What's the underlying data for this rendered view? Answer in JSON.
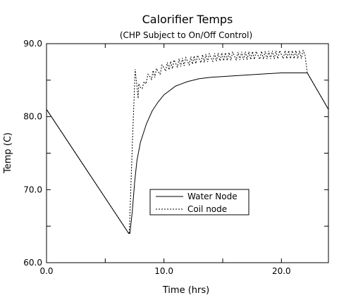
{
  "chart_data": {
    "type": "line",
    "title": "Calorifier Temps",
    "subtitle": "(CHP Subject to On/Off Control)",
    "xlabel": "Time (hrs)",
    "ylabel": "Temp (C)",
    "xlim": [
      0,
      24
    ],
    "ylim": [
      60,
      90
    ],
    "x_ticks": [
      0,
      10,
      20
    ],
    "x_tick_labels": [
      "0.0",
      "10.0",
      "20.0"
    ],
    "y_ticks": [
      60,
      70,
      80,
      90
    ],
    "y_tick_labels": [
      "60.0",
      "70.0",
      "80.0",
      "90.0"
    ],
    "grid": false,
    "legend_position": "center",
    "series": [
      {
        "name": "Water Node",
        "style": "solid",
        "x": [
          0,
          7.0,
          7.1,
          7.3,
          7.5,
          7.7,
          8.0,
          8.5,
          9.0,
          9.5,
          10.0,
          11.0,
          12.0,
          13.0,
          14.0,
          16.0,
          18.0,
          20.0,
          22.0,
          22.2,
          24.0
        ],
        "y": [
          81.0,
          64.0,
          64.0,
          67.0,
          71.0,
          74.0,
          76.5,
          79.0,
          80.8,
          82.0,
          83.0,
          84.2,
          84.8,
          85.2,
          85.4,
          85.6,
          85.8,
          86.0,
          86.0,
          86.0,
          81.0
        ]
      },
      {
        "name": "Coil node",
        "style": "dashed",
        "x": [
          0,
          7.0,
          7.05,
          7.3,
          7.55,
          7.8,
          7.85,
          8.0,
          8.3,
          8.8,
          9.5,
          10.0,
          11.0,
          12.0,
          13.0,
          14.0,
          16.0,
          18.0,
          20.0,
          22.0,
          22.2,
          24.0
        ],
        "y": [
          81.0,
          64.0,
          64.2,
          76.0,
          86.5,
          82.5,
          84.5,
          84.0,
          84.8,
          85.5,
          86.2,
          86.7,
          87.3,
          87.6,
          87.9,
          88.1,
          88.3,
          88.4,
          88.5,
          88.5,
          86.0,
          81.0
        ]
      }
    ]
  }
}
